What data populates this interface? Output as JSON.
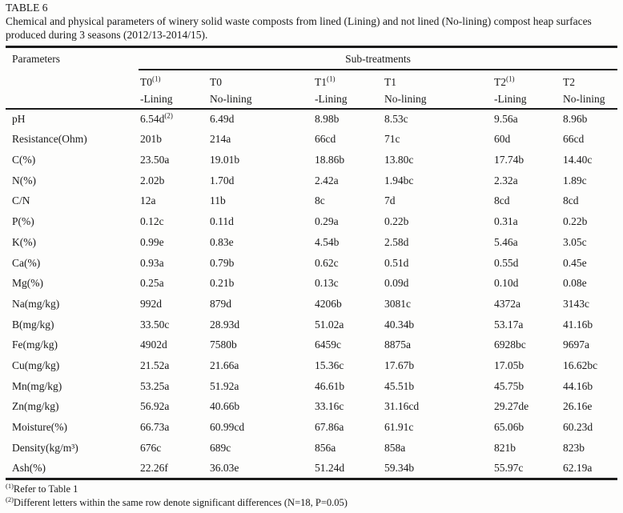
{
  "title": {
    "label": "TABLE 6",
    "caption": "Chemical and physical parameters of winery solid waste composts from lined (Lining) and not lined (No-lining) compost heap surfaces produced during 3 seasons (2012/13-2014/15)."
  },
  "table": {
    "parameters_label": "Parameters",
    "group_label": "Sub-treatments",
    "columns": [
      {
        "name": "T0",
        "sup": "(1)",
        "line2": "-Lining"
      },
      {
        "name": "T0",
        "line2": "No-lining"
      },
      {
        "name": "T1",
        "sup": "(1)",
        "line2": "-Lining"
      },
      {
        "name": "T1",
        "line2": "No-lining"
      },
      {
        "name": "T2",
        "sup": "(1)",
        "line2": "-Lining"
      },
      {
        "name": "T2",
        "line2": "No-lining"
      }
    ],
    "rows": [
      {
        "param": "pH",
        "cells": [
          {
            "t": "6.54d",
            "s": "(2)"
          },
          {
            "t": "6.49d"
          },
          {
            "t": "8.98b"
          },
          {
            "t": "8.53c"
          },
          {
            "t": "9.56a"
          },
          {
            "t": "8.96b"
          }
        ]
      },
      {
        "param": "Resistance(Ohm)",
        "cells": [
          {
            "t": "201b"
          },
          {
            "t": "214a"
          },
          {
            "t": "66cd"
          },
          {
            "t": "71c"
          },
          {
            "t": "60d"
          },
          {
            "t": "66cd"
          }
        ]
      },
      {
        "param": "C(%)",
        "cells": [
          {
            "t": "23.50a"
          },
          {
            "t": "19.01b"
          },
          {
            "t": "18.86b"
          },
          {
            "t": "13.80c"
          },
          {
            "t": "17.74b"
          },
          {
            "t": "14.40c"
          }
        ]
      },
      {
        "param": "N(%)",
        "cells": [
          {
            "t": "2.02b"
          },
          {
            "t": "1.70d"
          },
          {
            "t": "2.42a"
          },
          {
            "t": "1.94bc"
          },
          {
            "t": "2.32a"
          },
          {
            "t": "1.89c"
          }
        ]
      },
      {
        "param": "C/N",
        "cells": [
          {
            "t": "12a"
          },
          {
            "t": "11b"
          },
          {
            "t": "8c"
          },
          {
            "t": "7d"
          },
          {
            "t": "8cd"
          },
          {
            "t": "8cd"
          }
        ]
      },
      {
        "param": "P(%)",
        "cells": [
          {
            "t": "0.12c"
          },
          {
            "t": "0.11d"
          },
          {
            "t": "0.29a"
          },
          {
            "t": "0.22b"
          },
          {
            "t": "0.31a"
          },
          {
            "t": "0.22b"
          }
        ]
      },
      {
        "param": "K(%)",
        "cells": [
          {
            "t": "0.99e"
          },
          {
            "t": "0.83e"
          },
          {
            "t": "4.54b"
          },
          {
            "t": "2.58d"
          },
          {
            "t": "5.46a"
          },
          {
            "t": "3.05c"
          }
        ]
      },
      {
        "param": "Ca(%)",
        "cells": [
          {
            "t": "0.93a"
          },
          {
            "t": "0.79b"
          },
          {
            "t": "0.62c"
          },
          {
            "t": "0.51d"
          },
          {
            "t": "0.55d"
          },
          {
            "t": "0.45e"
          }
        ]
      },
      {
        "param": "Mg(%)",
        "cells": [
          {
            "t": "0.25a"
          },
          {
            "t": "0.21b"
          },
          {
            "t": "0.13c"
          },
          {
            "t": "0.09d"
          },
          {
            "t": "0.10d"
          },
          {
            "t": "0.08e"
          }
        ]
      },
      {
        "param": "Na(mg/kg)",
        "cells": [
          {
            "t": "992d"
          },
          {
            "t": "879d"
          },
          {
            "t": "4206b"
          },
          {
            "t": "3081c"
          },
          {
            "t": "4372a"
          },
          {
            "t": "3143c"
          }
        ]
      },
      {
        "param": "B(mg/kg)",
        "cells": [
          {
            "t": "33.50c"
          },
          {
            "t": "28.93d"
          },
          {
            "t": "51.02a"
          },
          {
            "t": "40.34b"
          },
          {
            "t": "53.17a"
          },
          {
            "t": "41.16b"
          }
        ]
      },
      {
        "param": "Fe(mg/kg)",
        "cells": [
          {
            "t": "4902d"
          },
          {
            "t": "7580b"
          },
          {
            "t": "6459c"
          },
          {
            "t": "8875a"
          },
          {
            "t": "6928bc"
          },
          {
            "t": "9697a"
          }
        ]
      },
      {
        "param": "Cu(mg/kg)",
        "cells": [
          {
            "t": "21.52a"
          },
          {
            "t": "21.66a"
          },
          {
            "t": "15.36c"
          },
          {
            "t": "17.67b"
          },
          {
            "t": "17.05b"
          },
          {
            "t": "16.62bc"
          }
        ]
      },
      {
        "param": "Mn(mg/kg)",
        "cells": [
          {
            "t": "53.25a"
          },
          {
            "t": "51.92a"
          },
          {
            "t": "46.61b"
          },
          {
            "t": "45.51b"
          },
          {
            "t": "45.75b"
          },
          {
            "t": "44.16b"
          }
        ]
      },
      {
        "param": "Zn(mg/kg)",
        "cells": [
          {
            "t": "56.92a"
          },
          {
            "t": "40.66b"
          },
          {
            "t": "33.16c"
          },
          {
            "t": "31.16cd"
          },
          {
            "t": "29.27de"
          },
          {
            "t": "26.16e"
          }
        ]
      },
      {
        "param": "Moisture(%)",
        "cells": [
          {
            "t": "66.73a"
          },
          {
            "t": "60.99cd"
          },
          {
            "t": "67.86a"
          },
          {
            "t": "61.91c"
          },
          {
            "t": "65.06b"
          },
          {
            "t": "60.23d"
          }
        ]
      },
      {
        "param": "Density(kg/m³)",
        "cells": [
          {
            "t": "676c"
          },
          {
            "t": "689c"
          },
          {
            "t": "856a"
          },
          {
            "t": "858a"
          },
          {
            "t": "821b"
          },
          {
            "t": "823b"
          }
        ]
      },
      {
        "param": "Ash(%)",
        "cells": [
          {
            "t": "22.26f"
          },
          {
            "t": "36.03e"
          },
          {
            "t": "51.24d"
          },
          {
            "t": "59.34b"
          },
          {
            "t": "55.97c"
          },
          {
            "t": "62.19a"
          }
        ]
      }
    ]
  },
  "footnotes": [
    {
      "marker": "(1)",
      "text": "Refer to Table 1"
    },
    {
      "marker": "(2)",
      "text": "Different letters within the same row denote significant differences (N=18, P=0.05)"
    }
  ],
  "colors": {
    "text": "#1a1a1a",
    "background": "#fdfdfc",
    "rule": "#1b1b1b"
  }
}
